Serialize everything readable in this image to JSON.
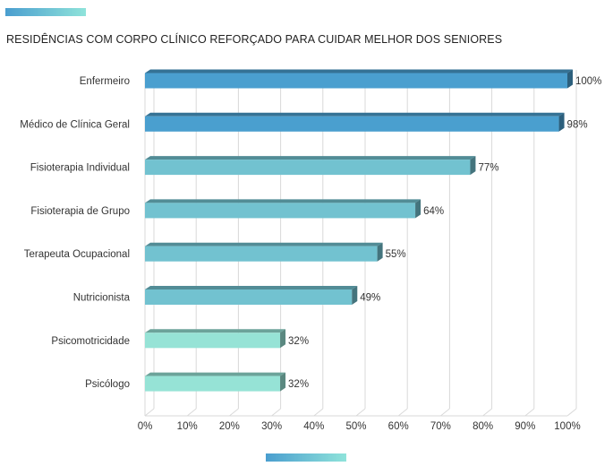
{
  "chart_data": {
    "type": "bar",
    "orientation": "horizontal",
    "title": "RESIDÊNCIAS COM CORPO CLÍNICO REFORÇADO PARA CUIDAR MELHOR DOS SENIORES",
    "categories": [
      "Enfermeiro",
      "Médico de Clínica Geral",
      "Fisioterapia Individual",
      "Fisioterapia de Grupo",
      "Terapeuta Ocupacional",
      "Nutricionista",
      "Psicomotricidade",
      "Psicólogo"
    ],
    "values": [
      100,
      98,
      77,
      64,
      55,
      49,
      32,
      32
    ],
    "value_labels": [
      "100%",
      "98%",
      "77%",
      "64%",
      "55%",
      "49%",
      "32%",
      "32%"
    ],
    "xlim": [
      0,
      100
    ],
    "xticks": [
      "0%",
      "10%",
      "20%",
      "30%",
      "40%",
      "50%",
      "60%",
      "70%",
      "80%",
      "90%",
      "100%"
    ],
    "grid": true,
    "bar_colors": [
      "#4a9fcf",
      "#4a9fcf",
      "#72c2d0",
      "#72c2d0",
      "#72c2d0",
      "#72c2d0",
      "#96e3d6",
      "#96e3d6"
    ]
  }
}
